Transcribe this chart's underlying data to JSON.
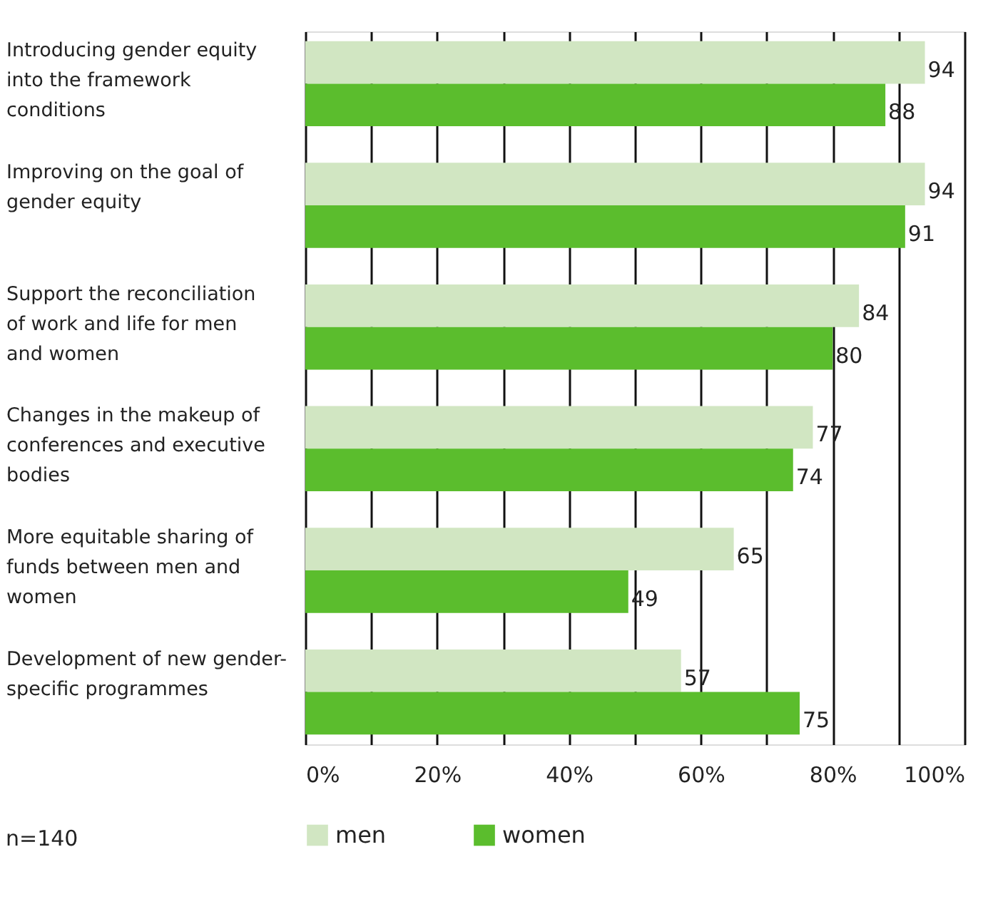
{
  "chart_data": {
    "type": "bar",
    "orientation": "horizontal",
    "categories": [
      "Introducing gender equity into the framework conditions",
      "Improving on the goal of gender equity",
      "Support the reconciliation of work and life for men and women",
      "Changes in the makeup of conferences and executive bodies",
      "More equitable sharing of funds between men and women",
      "Development of new gender-specific programmes"
    ],
    "series": [
      {
        "name": "men",
        "color": "#d1e6c2",
        "values": [
          94,
          94,
          84,
          77,
          65,
          57
        ]
      },
      {
        "name": "women",
        "color": "#5bbd2d",
        "values": [
          88,
          91,
          80,
          74,
          49,
          75
        ]
      }
    ],
    "xlim": [
      0,
      100
    ],
    "xticks": [
      {
        "value": 0,
        "label": "0%"
      },
      {
        "value": 10,
        "label": null
      },
      {
        "value": 20,
        "label": "20%"
      },
      {
        "value": 30,
        "label": null
      },
      {
        "value": 40,
        "label": "40%"
      },
      {
        "value": 50,
        "label": null
      },
      {
        "value": 60,
        "label": "60%"
      },
      {
        "value": 70,
        "label": null
      },
      {
        "value": 80,
        "label": "80%"
      },
      {
        "value": 90,
        "label": null
      },
      {
        "value": 100,
        "label": "100%"
      }
    ],
    "grid": "x",
    "legend": "bottom",
    "data_labels": true,
    "annotations": [
      "n=140"
    ]
  }
}
